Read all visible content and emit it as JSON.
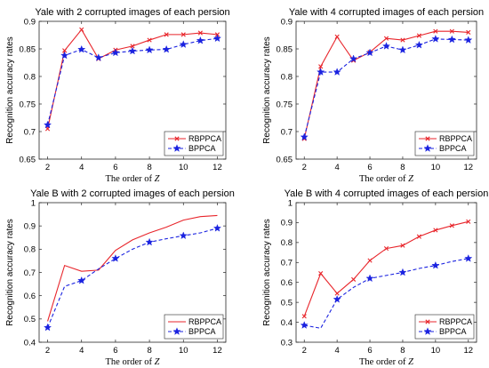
{
  "chart_data": [
    {
      "type": "line",
      "title": "Yale with 2 corrupted images of each persion",
      "xlabel_prefix": "The order of ",
      "xlabel_var": "Z",
      "ylabel": "Recognition accuracy rates",
      "xlim": [
        1.5,
        12.5
      ],
      "ylim": [
        0.65,
        0.9
      ],
      "xticks": [
        2,
        4,
        6,
        8,
        10,
        12
      ],
      "yticks": [
        0.65,
        0.7,
        0.75,
        0.8,
        0.85,
        0.9
      ],
      "legend_position": "bottom-right",
      "x": [
        2,
        3,
        4,
        5,
        6,
        7,
        8,
        9,
        10,
        11,
        12
      ],
      "series": [
        {
          "name": "RBPPCA",
          "color": "#e8252b",
          "dash": "solid",
          "marker": "x",
          "values": [
            0.705,
            0.847,
            0.885,
            0.832,
            0.848,
            0.855,
            0.866,
            0.876,
            0.876,
            0.879,
            0.876
          ]
        },
        {
          "name": "BPPCA",
          "color": "#1a22e0",
          "dash": "dashed",
          "marker": "star",
          "values": [
            0.712,
            0.838,
            0.849,
            0.834,
            0.843,
            0.846,
            0.848,
            0.849,
            0.858,
            0.865,
            0.869
          ]
        }
      ]
    },
    {
      "type": "line",
      "title": "Yale with 4 corrupted images of each persion",
      "xlabel_prefix": "The order of ",
      "xlabel_var": "Z",
      "ylabel": "Recognition accuracy rates",
      "xlim": [
        1.5,
        12.5
      ],
      "ylim": [
        0.65,
        0.9
      ],
      "xticks": [
        2,
        4,
        6,
        8,
        10,
        12
      ],
      "yticks": [
        0.65,
        0.7,
        0.75,
        0.8,
        0.85,
        0.9
      ],
      "legend_position": "bottom-right",
      "x": [
        2,
        3,
        4,
        5,
        6,
        7,
        8,
        9,
        10,
        11,
        12
      ],
      "series": [
        {
          "name": "RBPPCA",
          "color": "#e8252b",
          "dash": "solid",
          "marker": "x",
          "values": [
            0.687,
            0.818,
            0.872,
            0.829,
            0.844,
            0.869,
            0.866,
            0.874,
            0.882,
            0.882,
            0.88
          ]
        },
        {
          "name": "BPPCA",
          "color": "#1a22e0",
          "dash": "dashed",
          "marker": "star",
          "values": [
            0.69,
            0.808,
            0.808,
            0.832,
            0.843,
            0.855,
            0.848,
            0.857,
            0.868,
            0.867,
            0.866
          ]
        }
      ]
    },
    {
      "type": "line",
      "title": "Yale B with 2 corrupted images of each persion",
      "xlabel_prefix": "The order of ",
      "xlabel_var": "Z",
      "ylabel": "Recognition accuracy rates",
      "xlim": [
        1.5,
        12.5
      ],
      "ylim": [
        0.4,
        1.0
      ],
      "xticks": [
        2,
        4,
        6,
        8,
        10,
        12
      ],
      "yticks": [
        0.4,
        0.5,
        0.6,
        0.7,
        0.8,
        0.9,
        1.0
      ],
      "ytick_labels": [
        "0.4",
        "0.5",
        "0.6",
        "0.7",
        "0.8",
        "0.9",
        "1"
      ],
      "legend_position": "bottom-right",
      "x": [
        2,
        3,
        4,
        5,
        6,
        7,
        8,
        9,
        10,
        11,
        12
      ],
      "series": [
        {
          "name": "RBPPCA",
          "color": "#e8252b",
          "dash": "solid",
          "marker": "none",
          "values": [
            0.49,
            0.73,
            0.705,
            0.71,
            0.795,
            0.84,
            0.87,
            0.895,
            0.925,
            0.94,
            0.945
          ]
        },
        {
          "name": "BPPCA",
          "color": "#1a22e0",
          "dash": "dashed",
          "marker": "star-even",
          "values": [
            0.463,
            0.64,
            0.665,
            0.715,
            0.76,
            0.8,
            0.83,
            0.845,
            0.858,
            0.87,
            0.89
          ]
        }
      ]
    },
    {
      "type": "line",
      "title": "Yale B with 4 corrupted images of each persion",
      "xlabel_prefix": "The order of ",
      "xlabel_var": "Z",
      "ylabel": "Recognition accuracy rates",
      "xlim": [
        1.5,
        12.5
      ],
      "ylim": [
        0.3,
        1.0
      ],
      "xticks": [
        2,
        4,
        6,
        8,
        10,
        12
      ],
      "yticks": [
        0.3,
        0.4,
        0.5,
        0.6,
        0.7,
        0.8,
        0.9,
        1.0
      ],
      "ytick_labels": [
        "0.3",
        "0.4",
        "0.5",
        "0.6",
        "0.7",
        "0.8",
        "0.9",
        "1"
      ],
      "legend_position": "bottom-right",
      "x": [
        2,
        3,
        4,
        5,
        6,
        7,
        8,
        9,
        10,
        11,
        12
      ],
      "series": [
        {
          "name": "RBPPCA",
          "color": "#e8252b",
          "dash": "solid",
          "marker": "x",
          "values": [
            0.43,
            0.645,
            0.545,
            0.615,
            0.71,
            0.77,
            0.785,
            0.83,
            0.862,
            0.885,
            0.905
          ]
        },
        {
          "name": "BPPCA",
          "color": "#1a22e0",
          "dash": "dashed",
          "marker": "star-even",
          "values": [
            0.385,
            0.37,
            0.515,
            0.575,
            0.62,
            0.635,
            0.65,
            0.67,
            0.685,
            0.705,
            0.72
          ]
        }
      ]
    }
  ]
}
